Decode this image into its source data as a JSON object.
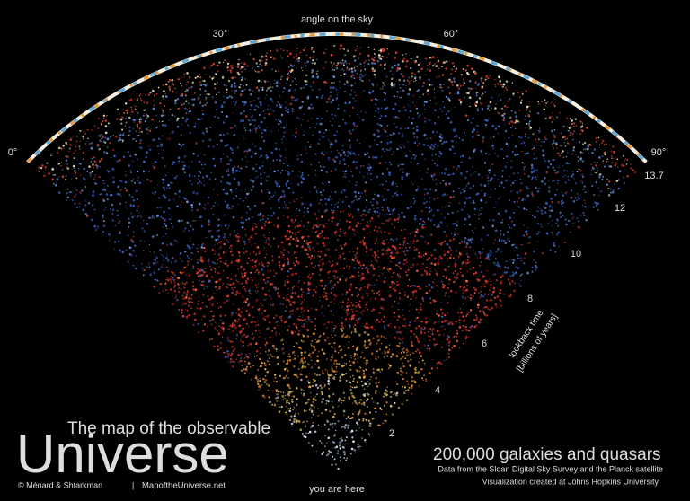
{
  "sky_axis": {
    "title": "angle on the sky",
    "labels": [
      "0°",
      "30°",
      "60°",
      "90°"
    ]
  },
  "time_axis": {
    "title": "lookback time",
    "unit": "[billions of years]",
    "labels": [
      "2",
      "4",
      "6",
      "8",
      "10",
      "12",
      "13.7"
    ]
  },
  "origin_label": "you are here",
  "title": {
    "line1": "The map of the observable",
    "line2": "Universe"
  },
  "credits": {
    "authors": "© Ménard & Shtarkman",
    "separator": "|",
    "website": "MapoftheUniverse.net"
  },
  "caption": {
    "heading": "200,000 galaxies and quasars",
    "line1": "Data from the Sloan Digital Sky Survey and the Planck satellite",
    "line2": "Visualization created at Johns Hopkins University"
  }
}
